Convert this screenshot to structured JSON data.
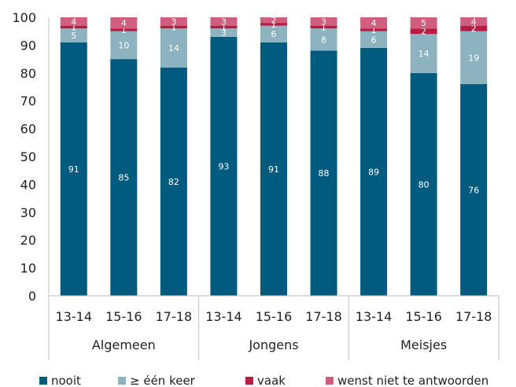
{
  "chart_data": {
    "type": "bar",
    "stacked": true,
    "groups": [
      {
        "label": "Algemeen",
        "categories": [
          "13-14",
          "15-16",
          "17-18"
        ]
      },
      {
        "label": "Jongens",
        "categories": [
          "13-14",
          "15-16",
          "17-18"
        ]
      },
      {
        "label": "Meisjes",
        "categories": [
          "13-14",
          "15-16",
          "17-18"
        ]
      }
    ],
    "categories": [
      "13-14",
      "15-16",
      "17-18",
      "13-14",
      "15-16",
      "17-18",
      "13-14",
      "15-16",
      "17-18"
    ],
    "series": [
      {
        "name": "nooit",
        "color": "#005b7f",
        "values": [
          91,
          85,
          82,
          93,
          91,
          88,
          89,
          80,
          76
        ]
      },
      {
        "name": "≥ één keer",
        "color": "#8db3c0",
        "values": [
          5,
          10,
          14,
          3,
          6,
          8,
          6,
          14,
          19
        ]
      },
      {
        "name": "vaak",
        "color": "#b81c43",
        "values": [
          1,
          1,
          1,
          1,
          1,
          1,
          1,
          2,
          2
        ]
      },
      {
        "name": "wenst niet te antwoorden",
        "color": "#d05f7f",
        "values": [
          4,
          4,
          3,
          3,
          2,
          3,
          4,
          5,
          4
        ]
      }
    ],
    "ylim": [
      0,
      100
    ],
    "yticks": [
      "0",
      "10",
      "20",
      "30",
      "40",
      "50",
      "60",
      "70",
      "80",
      "90",
      "100"
    ],
    "grid": false,
    "legend": "bottom",
    "title": "",
    "xlabel": "",
    "ylabel": ""
  }
}
